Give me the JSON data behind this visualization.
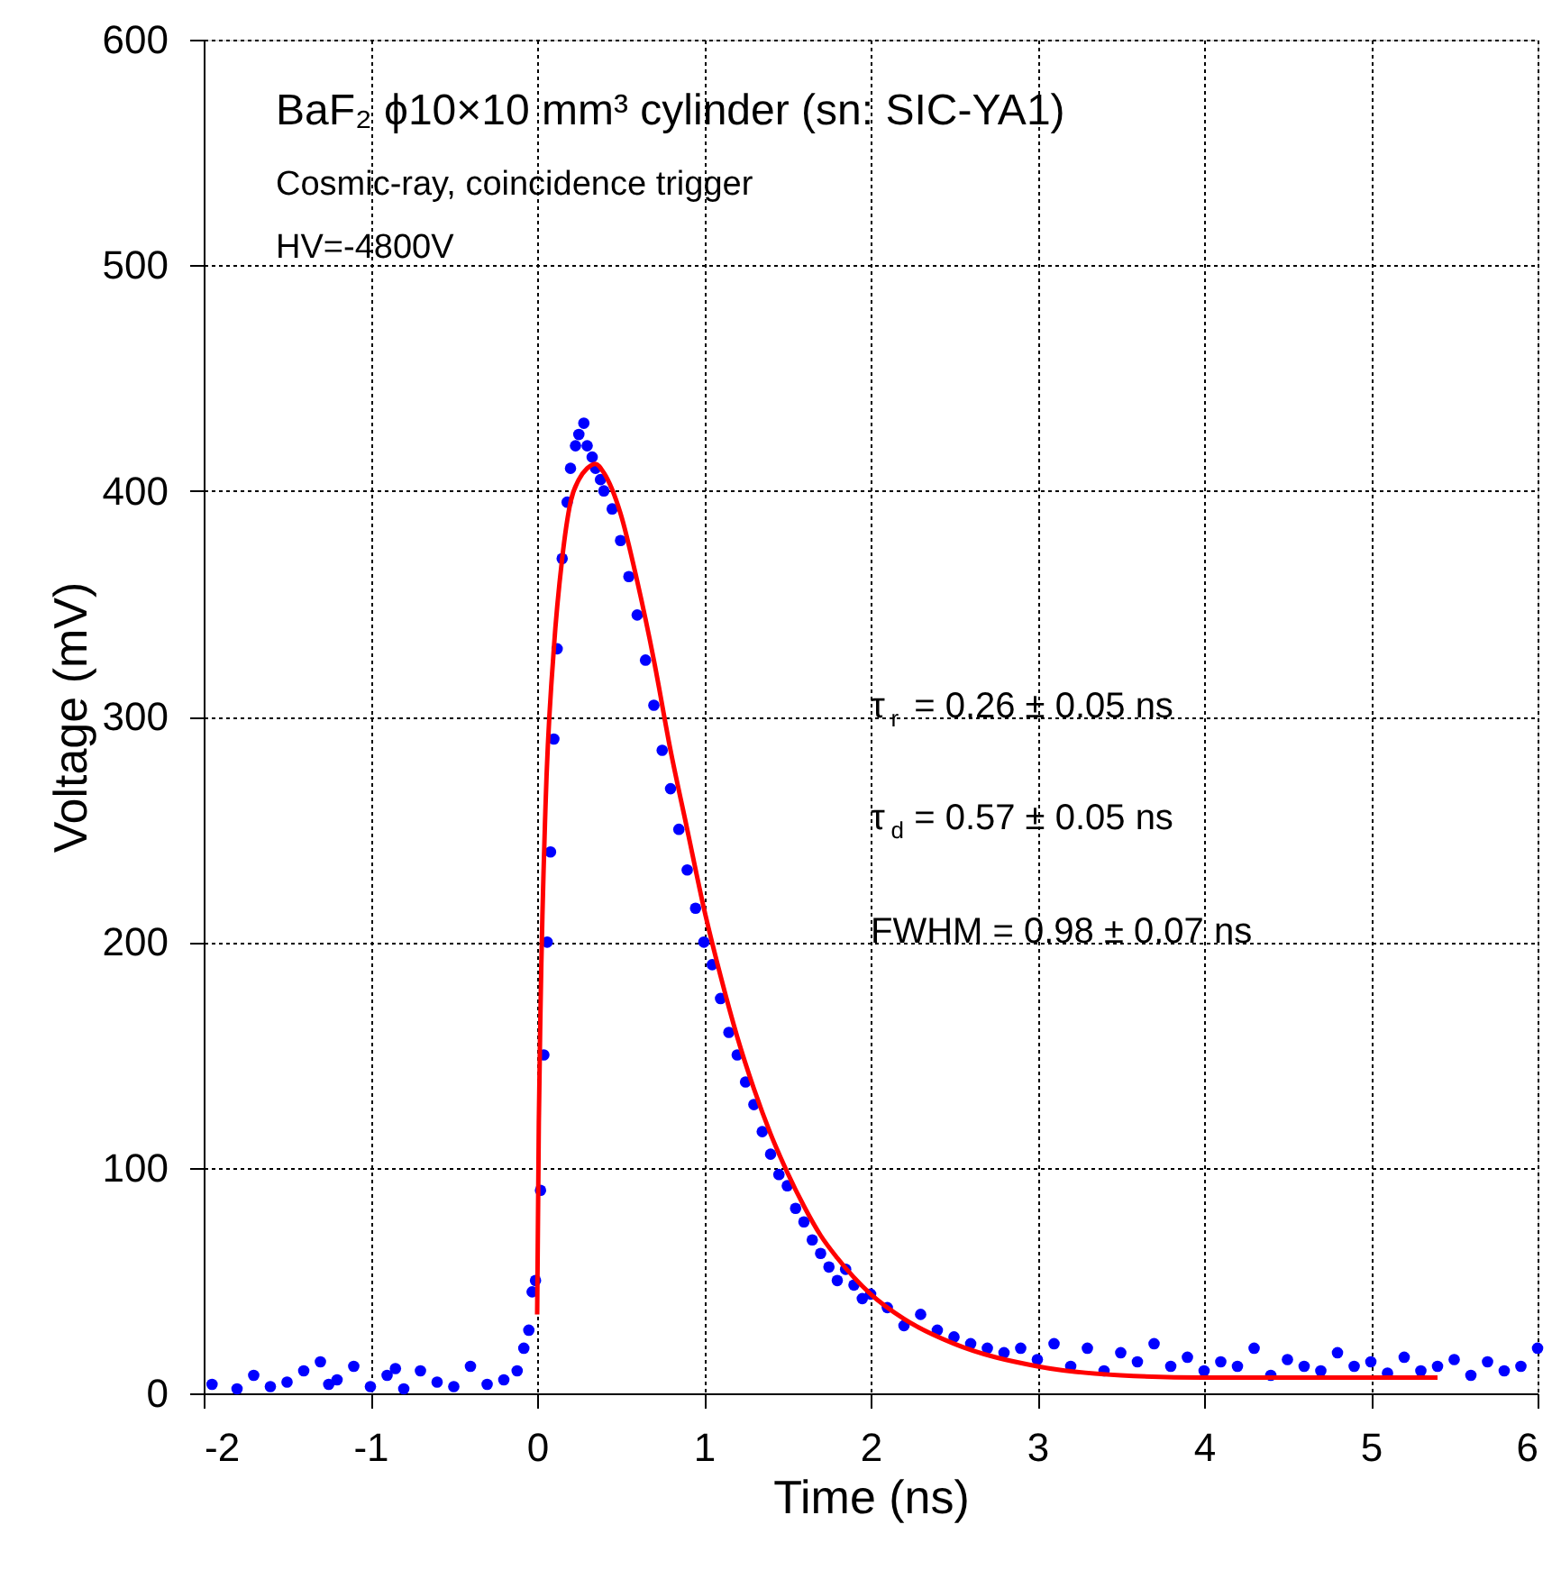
{
  "chart_data": {
    "type": "scatter",
    "xlabel": "Time (ns)",
    "ylabel": "Voltage (mV)",
    "xlim": [
      -2,
      6
    ],
    "xticks": [
      -2,
      -1,
      0,
      1,
      2,
      3,
      4,
      5,
      6
    ],
    "ylim": [
      0,
      600
    ],
    "yticks": [
      0,
      100,
      200,
      300,
      400,
      500,
      600
    ],
    "grid": true,
    "series": [
      {
        "marker": "circle",
        "color": "#0000ff",
        "x": [
          -1.95,
          -1.8,
          -1.7,
          -1.6,
          -1.5,
          -1.4,
          -1.3,
          -1.25,
          -1.2,
          -1.1,
          -1.0,
          -0.9,
          -0.85,
          -0.8,
          -0.7,
          -0.6,
          -0.5,
          -0.4,
          -0.3,
          -0.2,
          -0.12,
          -0.08,
          -0.05,
          -0.03,
          -0.01,
          0.02,
          0.04,
          0.06,
          0.08,
          0.1,
          0.12,
          0.15,
          0.18,
          0.2,
          0.23,
          0.25,
          0.28,
          0.3,
          0.33,
          0.35,
          0.38,
          0.4,
          0.45,
          0.5,
          0.55,
          0.6,
          0.65,
          0.7,
          0.75,
          0.8,
          0.85,
          0.9,
          0.95,
          1.0,
          1.05,
          1.1,
          1.15,
          1.2,
          1.25,
          1.3,
          1.35,
          1.4,
          1.45,
          1.5,
          1.55,
          1.6,
          1.65,
          1.7,
          1.75,
          1.8,
          1.85,
          1.9,
          1.95,
          2.0,
          2.1,
          2.2,
          2.3,
          2.4,
          2.5,
          2.6,
          2.7,
          2.8,
          2.9,
          3.0,
          3.1,
          3.2,
          3.3,
          3.4,
          3.5,
          3.6,
          3.7,
          3.8,
          3.9,
          4.0,
          4.1,
          4.2,
          4.3,
          4.4,
          4.5,
          4.6,
          4.7,
          4.8,
          4.9,
          5.0,
          5.1,
          5.2,
          5.3,
          5.4,
          5.5,
          5.6,
          5.7,
          5.8,
          5.9,
          6.0
        ],
        "values": [
          4,
          2,
          8,
          3,
          5,
          10,
          14,
          4,
          6,
          12,
          3,
          8,
          11,
          2,
          10,
          5,
          3,
          12,
          4,
          6,
          10,
          20,
          28,
          45,
          50,
          90,
          150,
          200,
          240,
          290,
          330,
          370,
          395,
          410,
          420,
          425,
          430,
          420,
          415,
          410,
          405,
          400,
          392,
          378,
          362,
          345,
          325,
          305,
          285,
          268,
          250,
          232,
          215,
          200,
          190,
          175,
          160,
          150,
          138,
          128,
          116,
          106,
          97,
          92,
          82,
          76,
          68,
          62,
          56,
          50,
          55,
          48,
          42,
          44,
          38,
          30,
          35,
          28,
          25,
          22,
          20,
          18,
          20,
          15,
          22,
          12,
          20,
          10,
          18,
          14,
          22,
          12,
          16,
          10,
          14,
          12,
          20,
          8,
          15,
          12,
          10,
          18,
          12,
          14,
          9,
          16,
          10,
          12,
          15,
          8,
          14,
          10,
          12,
          20
        ]
      },
      {
        "type": "line",
        "marker": "none",
        "color": "#ff0000",
        "x": [
          0,
          0.01,
          0.02,
          0.05,
          0.1,
          0.15,
          0.2,
          0.25,
          0.3,
          0.35,
          0.4,
          0.5,
          0.6,
          0.7,
          0.8,
          0.9,
          1.0,
          1.1,
          1.2,
          1.3,
          1.4,
          1.5,
          1.6,
          1.7,
          1.8,
          2.0,
          2.2,
          2.5,
          3.0,
          3.5,
          4.0,
          4.5,
          5.0,
          5.4
        ],
        "values": [
          35,
          120,
          170,
          260,
          330,
          370,
          395,
          405,
          410,
          412,
          408,
          390,
          360,
          325,
          285,
          250,
          215,
          185,
          158,
          135,
          115,
          98,
          83,
          70,
          60,
          44,
          33,
          22,
          12,
          8,
          7,
          7,
          7,
          7
        ]
      }
    ],
    "annotations": [
      "BaF₂ ϕ10×10 mm³ cylinder (sn: SIC-YA1)",
      "Cosmic-ray, coincidence trigger",
      "HV=-4800V",
      "τ$_{r}$ = 0.26 ± 0.05 ns",
      "τ$_{d}$ = 0.57 ± 0.05 ns",
      "FWHM = 0.98 ± 0.07 ns"
    ]
  }
}
